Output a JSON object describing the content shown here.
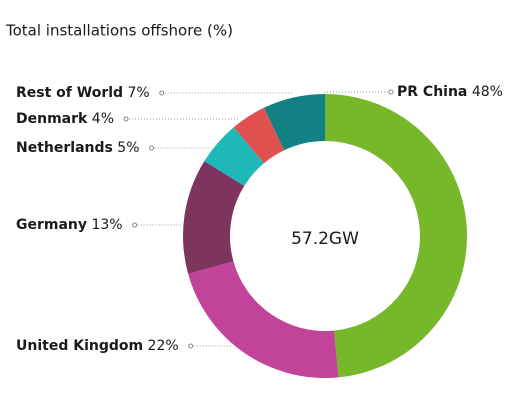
{
  "chart_data": {
    "type": "donut",
    "title": "Total installations offshore (%)",
    "center_label": "57.2GW",
    "categories": [
      "PR China",
      "United Kingdom",
      "Germany",
      "Netherlands",
      "Denmark",
      "Rest of World"
    ],
    "values": [
      48,
      22,
      13,
      5,
      4,
      7
    ],
    "value_labels": [
      "48%",
      "22%",
      "13%",
      "5%",
      "4%",
      "7%"
    ],
    "colors": [
      "#76b82a",
      "#c2449a",
      "#7d3560",
      "#1fb8b8",
      "#e0514f",
      "#138183"
    ]
  }
}
